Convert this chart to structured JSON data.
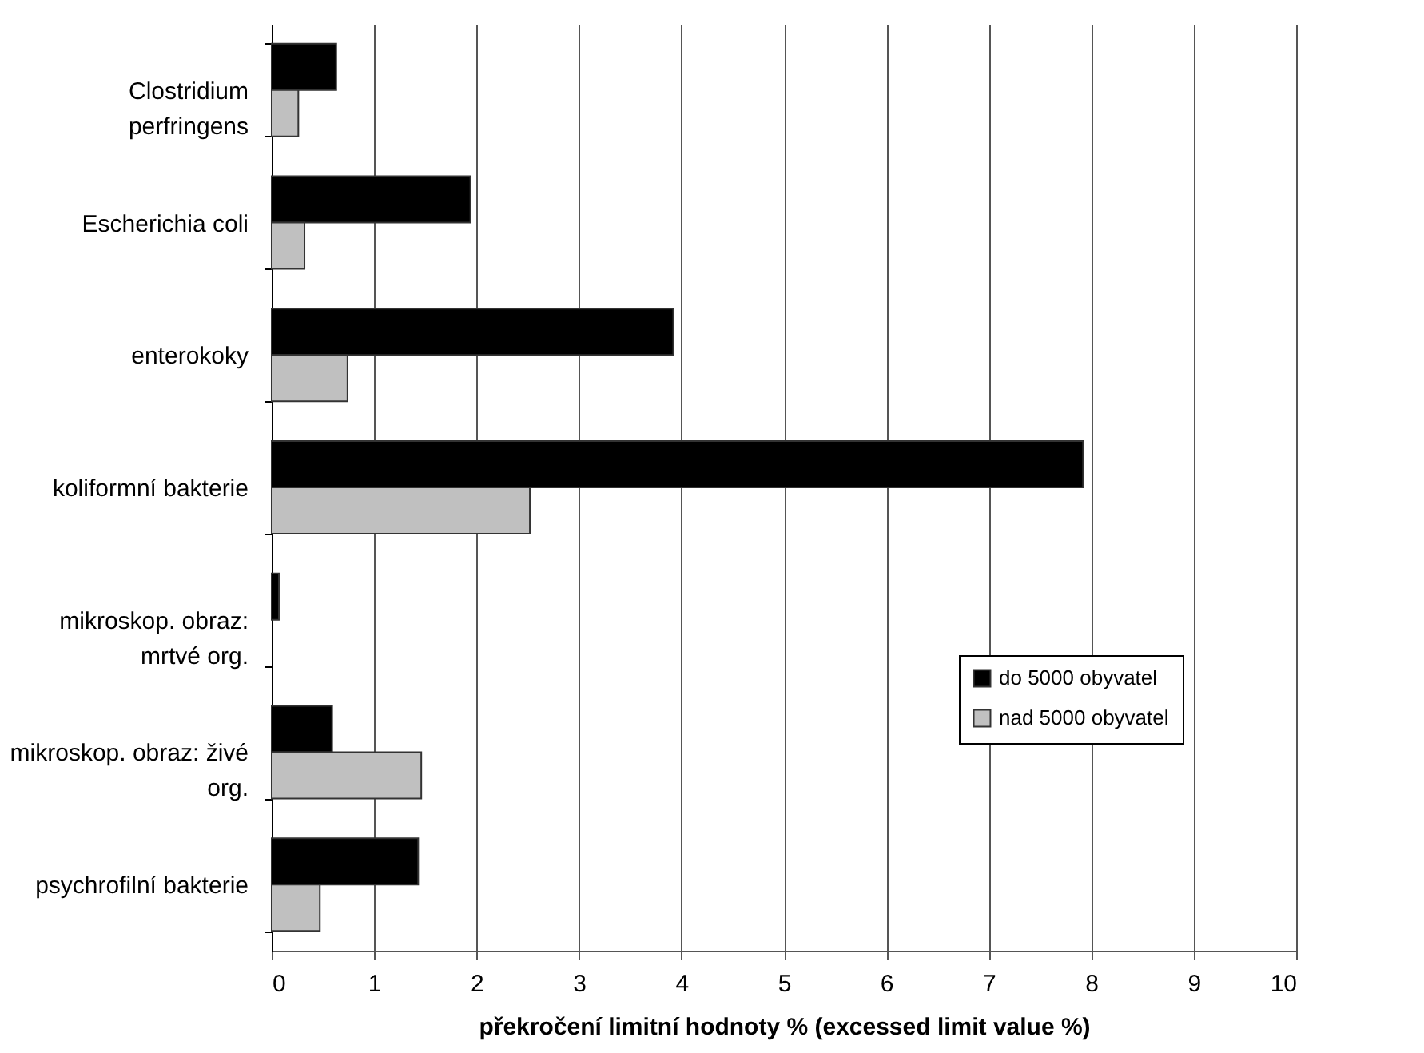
{
  "chart_data": {
    "type": "bar",
    "orientation": "horizontal",
    "xlabel": "překročení limitní hodnoty % (excessed limit value %)",
    "categories": [
      "Clostridium perfringens",
      "Escherichia coli",
      "enterokoky",
      "koliformní bakterie",
      "mikroskop. obraz: mrtvé org.",
      "mikroskop. obraz: živé org.",
      "psychrofilní bakterie"
    ],
    "series": [
      {
        "name": "do 5000 obyvatel",
        "color": "#000000",
        "values": [
          0.63,
          1.94,
          3.92,
          7.92,
          0.07,
          0.59,
          1.43
        ]
      },
      {
        "name": "nad 5000 obyvatel",
        "color": "#c0c0c0",
        "values": [
          0.26,
          0.32,
          0.74,
          2.52,
          null,
          1.46,
          0.47
        ]
      }
    ],
    "xlim": [
      0,
      10
    ],
    "xticks": [
      0,
      1,
      2,
      3,
      4,
      5,
      6,
      7,
      8,
      9,
      10
    ],
    "grid": "x",
    "legend": "right"
  }
}
